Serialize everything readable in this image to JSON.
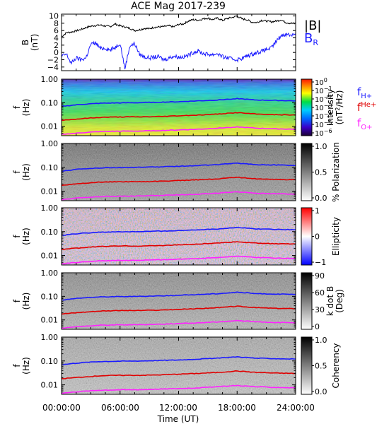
{
  "title": "ACE Mag 2017-239",
  "xaxis": {
    "label": "Time (UT)",
    "ticks": [
      "00:00:00",
      "06:00:00",
      "12:00:00",
      "18:00:00",
      "24:00:00"
    ],
    "range_hours": [
      0,
      24
    ]
  },
  "colors": {
    "B_total": "#000000",
    "B_R": "#1a1aff",
    "f_H": "#1a1aff",
    "f_He": "#e00000",
    "f_O": "#ff22ff"
  },
  "chart_data": [
    {
      "type": "line",
      "panel": "magnetic-field",
      "ylabel": "B",
      "yunit": "(nT)",
      "ylim": [
        -5,
        10.5
      ],
      "yticks": [
        10,
        8,
        6,
        4,
        2,
        0,
        -2,
        -4
      ],
      "ytick_labels": [
        "10",
        "8",
        "6",
        "4",
        "2",
        "0",
        "−2",
        "−4"
      ],
      "x_hours": [
        0,
        0.5,
        1,
        1.5,
        2,
        2.5,
        3,
        3.5,
        4,
        4.5,
        5,
        5.5,
        6,
        6.5,
        7,
        7.5,
        8,
        8.5,
        9,
        9.5,
        10,
        10.5,
        11,
        11.5,
        12,
        12.5,
        13,
        13.5,
        14,
        14.5,
        15,
        15.5,
        16,
        16.5,
        17,
        17.5,
        18,
        18.5,
        19,
        19.5,
        20,
        20.5,
        21,
        21.5,
        22,
        22.5,
        23,
        23.5,
        24
      ],
      "series": [
        {
          "name": "|B|",
          "values": [
            4.3,
            5.4,
            5.6,
            5.9,
            6.3,
            6.8,
            7.2,
            7.4,
            7.5,
            7.2,
            7.1,
            7.8,
            7.3,
            7.0,
            6.6,
            6.0,
            6.2,
            6.6,
            6.5,
            6.9,
            7.0,
            7.1,
            7.3,
            7.0,
            7.7,
            7.8,
            8.6,
            9.0,
            8.8,
            9.2,
            9.4,
            9.0,
            9.4,
            8.8,
            9.3,
            9.6,
            10.0,
            9.2,
            9.0,
            8.3,
            8.2,
            8.8,
            8.6,
            8.4,
            8.6,
            8.9,
            8.2,
            8.0,
            7.9
          ]
        },
        {
          "name": "B_R",
          "values": [
            -1.0,
            -0.5,
            -3.0,
            -1.5,
            -2.0,
            -1.5,
            2.2,
            2.6,
            1.0,
            1.2,
            0.6,
            1.4,
            2.6,
            -4.4,
            1.8,
            2.4,
            -0.5,
            -1.2,
            -1.5,
            -1.3,
            -1.2,
            -2.0,
            -1.5,
            -1.0,
            -1.3,
            -1.2,
            -0.8,
            0.0,
            0.4,
            -0.3,
            -0.5,
            -0.6,
            -0.3,
            -1.2,
            -1.5,
            -1.8,
            -2.0,
            -1.6,
            -1.0,
            -0.5,
            0.0,
            0.3,
            0.8,
            1.2,
            3.0,
            4.6,
            5.0,
            4.8,
            5.2
          ]
        }
      ],
      "legend": {
        "labels": [
          "|B|",
          "B"
        ],
        "subscripts": [
          "",
          "R"
        ],
        "placement": "right"
      }
    },
    {
      "type": "heatmap",
      "panel": "intensity",
      "ylabel": "f",
      "yunit": "(Hz)",
      "yscale": "log",
      "ylim": [
        0.004,
        1.0
      ],
      "yticks": [
        1.0,
        0.1,
        0.01
      ],
      "ytick_labels": [
        "1.00",
        "0.10",
        "0.01"
      ],
      "colorbar": {
        "label": "Intensity",
        "unit_parts": [
          "(nT",
          "2",
          "/Hz)"
        ],
        "scale": "log",
        "tick_base": "10",
        "tick_exponents": [
          "0",
          "−1",
          "−2",
          "−3",
          "−4",
          "−5",
          "−6"
        ],
        "palette": "rainbow"
      },
      "legend": {
        "labels": [
          "f",
          "f",
          "f"
        ],
        "subscripts": [
          "H+",
          "He+",
          "O+"
        ],
        "placement": "right"
      }
    },
    {
      "type": "heatmap",
      "panel": "polarization",
      "ylabel": "f",
      "yunit": "(Hz)",
      "yscale": "log",
      "ylim": [
        0.004,
        1.0
      ],
      "yticks": [
        1.0,
        0.1,
        0.01
      ],
      "ytick_labels": [
        "1.00",
        "0.10",
        "0.01"
      ],
      "colorbar": {
        "label": "% Polarization",
        "ticks": [
          1.0,
          0.5,
          0.0
        ],
        "tick_labels": [
          "1.0",
          "0.5",
          "0.0"
        ],
        "palette": "gray"
      }
    },
    {
      "type": "heatmap",
      "panel": "ellipticity",
      "ylabel": "f",
      "yunit": "(Hz)",
      "yscale": "log",
      "ylim": [
        0.004,
        1.0
      ],
      "yticks": [
        1.0,
        0.1,
        0.01
      ],
      "ytick_labels": [
        "1.00",
        "0.10",
        "0.01"
      ],
      "colorbar": {
        "label": "Ellipticity",
        "ticks": [
          1,
          0,
          -1
        ],
        "tick_labels": [
          "1",
          "0",
          "−1"
        ],
        "palette": "blue-white-red"
      }
    },
    {
      "type": "heatmap",
      "panel": "wave-normal-angle",
      "ylabel": "f",
      "yunit": "(Hz)",
      "yscale": "log",
      "ylim": [
        0.004,
        1.0
      ],
      "yticks": [
        1.0,
        0.1,
        0.01
      ],
      "ytick_labels": [
        "1.00",
        "0.10",
        "0.01"
      ],
      "colorbar": {
        "label": "k dot B",
        "unit": "(Deg)",
        "ticks": [
          90,
          60,
          30,
          0
        ],
        "tick_labels": [
          "90",
          "60",
          "30",
          "0"
        ],
        "palette": "gray"
      }
    },
    {
      "type": "heatmap",
      "panel": "coherency",
      "ylabel": "f",
      "yunit": "(Hz)",
      "yscale": "log",
      "ylim": [
        0.004,
        1.0
      ],
      "yticks": [
        1.0,
        0.1,
        0.01
      ],
      "ytick_labels": [
        "1.00",
        "0.10",
        "0.01"
      ],
      "colorbar": {
        "label": "Coherency",
        "ticks": [
          1.0,
          0.5,
          0.0
        ],
        "tick_labels": [
          "1.0",
          "0.5",
          "0.0"
        ],
        "palette": "gray"
      }
    }
  ],
  "gyrofrequency_lines": {
    "x_hours": [
      0,
      2,
      4,
      6,
      8,
      10,
      12,
      14,
      16,
      18,
      20,
      22,
      24
    ],
    "f_H": [
      0.07,
      0.085,
      0.095,
      0.098,
      0.1,
      0.105,
      0.11,
      0.12,
      0.13,
      0.15,
      0.13,
      0.125,
      0.12
    ],
    "f_He": [
      0.018,
      0.021,
      0.024,
      0.025,
      0.025,
      0.026,
      0.028,
      0.03,
      0.033,
      0.038,
      0.033,
      0.031,
      0.03
    ],
    "f_O": [
      0.0045,
      0.0053,
      0.006,
      0.0062,
      0.0063,
      0.0066,
      0.007,
      0.0075,
      0.0083,
      0.0094,
      0.0083,
      0.0078,
      0.0075
    ]
  }
}
